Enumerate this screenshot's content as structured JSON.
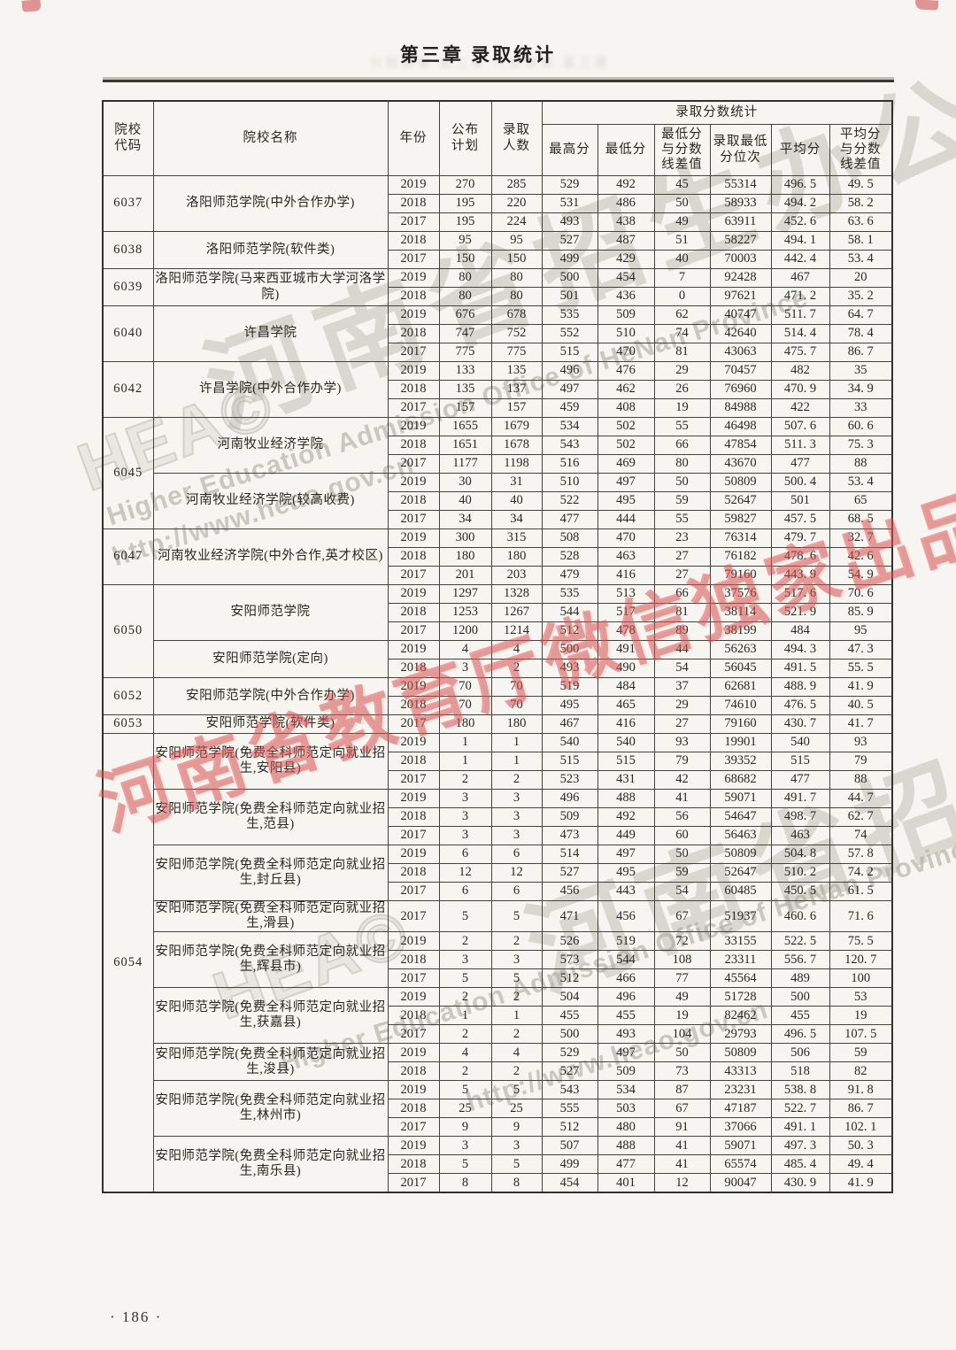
{
  "page": {
    "chapter_title": "第三章  录取统计",
    "ghost_text": "第三章 录取统计 第三章 录取统计",
    "page_number": "· 186 ·"
  },
  "colors": {
    "watermark_red": "#d55151",
    "watermark_gray": "#b0aba1",
    "paper": "#f6f5f1"
  },
  "watermarks": {
    "red_diagonal": "河南省教育厅微信独家出品",
    "gray_logo": "HEA©",
    "gray_cn": "河南省招生办公室",
    "gray_en": "Higher Education Admission Office of HeNan Province",
    "gray_url": "http://www.heao.gov.cn"
  },
  "table": {
    "headers": {
      "code": "院校\n代码",
      "name": "院校名称",
      "year": "年份",
      "plan": "公布\n计划",
      "admitted": "录取\n人数",
      "score_stats": "录取分数统计",
      "max": "最高分",
      "min": "最低分",
      "min_diff": "最低分\n与分数\n线差值",
      "rank": "录取最低\n分位次",
      "avg": "平均分",
      "avg_diff": "平均分\n与分数\n线差值"
    },
    "groups": [
      {
        "code": "6037",
        "blocks": [
          {
            "name": "洛阳师范学院(中外合作办学)",
            "rows": [
              [
                "2019",
                "270",
                "285",
                "529",
                "492",
                "45",
                "55314",
                "496. 5",
                "49. 5"
              ],
              [
                "2018",
                "195",
                "220",
                "531",
                "486",
                "50",
                "58933",
                "494. 2",
                "58. 2"
              ],
              [
                "2017",
                "195",
                "224",
                "493",
                "438",
                "49",
                "63911",
                "452. 6",
                "63. 6"
              ]
            ]
          }
        ]
      },
      {
        "code": "6038",
        "blocks": [
          {
            "name": "洛阳师范学院(软件类)",
            "rows": [
              [
                "2018",
                "95",
                "95",
                "527",
                "487",
                "51",
                "58227",
                "494. 1",
                "58. 1"
              ],
              [
                "2017",
                "150",
                "150",
                "499",
                "429",
                "40",
                "70003",
                "442. 4",
                "53. 4"
              ]
            ]
          }
        ]
      },
      {
        "code": "6039",
        "blocks": [
          {
            "name": "洛阳师范学院(马来西亚城市大学河洛学院)",
            "rows": [
              [
                "2019",
                "80",
                "80",
                "500",
                "454",
                "7",
                "92428",
                "467",
                "20"
              ],
              [
                "2018",
                "80",
                "80",
                "501",
                "436",
                "0",
                "97621",
                "471. 2",
                "35. 2"
              ]
            ]
          }
        ]
      },
      {
        "code": "6040",
        "blocks": [
          {
            "name": "许昌学院",
            "rows": [
              [
                "2019",
                "676",
                "678",
                "535",
                "509",
                "62",
                "40747",
                "511. 7",
                "64. 7"
              ],
              [
                "2018",
                "747",
                "752",
                "552",
                "510",
                "74",
                "42640",
                "514. 4",
                "78. 4"
              ],
              [
                "2017",
                "775",
                "775",
                "515",
                "470",
                "81",
                "43063",
                "475. 7",
                "86. 7"
              ]
            ]
          }
        ]
      },
      {
        "code": "6042",
        "blocks": [
          {
            "name": "许昌学院(中外合作办学)",
            "rows": [
              [
                "2019",
                "133",
                "135",
                "496",
                "476",
                "29",
                "70457",
                "482",
                "35"
              ],
              [
                "2018",
                "135",
                "137",
                "497",
                "462",
                "26",
                "76960",
                "470. 9",
                "34. 9"
              ],
              [
                "2017",
                "157",
                "157",
                "459",
                "408",
                "19",
                "84988",
                "422",
                "33"
              ]
            ]
          }
        ]
      },
      {
        "code": "6045",
        "blocks": [
          {
            "name": "河南牧业经济学院",
            "rows": [
              [
                "2019",
                "1655",
                "1679",
                "534",
                "502",
                "55",
                "46498",
                "507. 6",
                "60. 6"
              ],
              [
                "2018",
                "1651",
                "1678",
                "543",
                "502",
                "66",
                "47854",
                "511. 3",
                "75. 3"
              ],
              [
                "2017",
                "1177",
                "1198",
                "516",
                "469",
                "80",
                "43670",
                "477",
                "88"
              ]
            ]
          },
          {
            "name": "河南牧业经济学院(较高收费)",
            "rows": [
              [
                "2019",
                "30",
                "31",
                "510",
                "497",
                "50",
                "50809",
                "500. 4",
                "53. 4"
              ],
              [
                "2018",
                "40",
                "40",
                "522",
                "495",
                "59",
                "52647",
                "501",
                "65"
              ],
              [
                "2017",
                "34",
                "34",
                "477",
                "444",
                "55",
                "59827",
                "457. 5",
                "68. 5"
              ]
            ]
          }
        ]
      },
      {
        "code": "6047",
        "blocks": [
          {
            "name": "河南牧业经济学院(中外合作,英才校区)",
            "rows": [
              [
                "2019",
                "300",
                "315",
                "508",
                "470",
                "23",
                "76314",
                "479. 7",
                "32. 7"
              ],
              [
                "2018",
                "180",
                "180",
                "528",
                "463",
                "27",
                "76182",
                "478. 6",
                "42. 6"
              ],
              [
                "2017",
                "201",
                "203",
                "479",
                "416",
                "27",
                "79160",
                "443. 9",
                "54. 9"
              ]
            ]
          }
        ]
      },
      {
        "code": "6050",
        "blocks": [
          {
            "name": "安阳师范学院",
            "rows": [
              [
                "2019",
                "1297",
                "1328",
                "535",
                "513",
                "66",
                "37576",
                "517. 6",
                "70. 6"
              ],
              [
                "2018",
                "1253",
                "1267",
                "544",
                "517",
                "81",
                "38114",
                "521. 9",
                "85. 9"
              ],
              [
                "2017",
                "1200",
                "1214",
                "512",
                "478",
                "89",
                "38199",
                "484",
                "95"
              ]
            ]
          },
          {
            "name": "安阳师范学院(定向)",
            "rows": [
              [
                "2019",
                "4",
                "4",
                "500",
                "491",
                "44",
                "56263",
                "494. 3",
                "47. 3"
              ],
              [
                "2018",
                "3",
                "2",
                "493",
                "490",
                "54",
                "56045",
                "491. 5",
                "55. 5"
              ]
            ]
          }
        ]
      },
      {
        "code": "6052",
        "blocks": [
          {
            "name": "安阳师范学院(中外合作办学)",
            "rows": [
              [
                "2019",
                "70",
                "70",
                "519",
                "484",
                "37",
                "62681",
                "488. 9",
                "41. 9"
              ],
              [
                "2018",
                "70",
                "70",
                "495",
                "465",
                "29",
                "74610",
                "476. 5",
                "40. 5"
              ]
            ]
          }
        ]
      },
      {
        "code": "6053",
        "blocks": [
          {
            "name": "安阳师范学院(软件类)",
            "rows": [
              [
                "2017",
                "180",
                "180",
                "467",
                "416",
                "27",
                "79160",
                "430. 7",
                "41. 7"
              ]
            ]
          }
        ]
      },
      {
        "code": "6054",
        "blocks": [
          {
            "name": "安阳师范学院(免费全科师范定向就业招生,安阳县)",
            "rows": [
              [
                "2019",
                "1",
                "1",
                "540",
                "540",
                "93",
                "19901",
                "540",
                "93"
              ],
              [
                "2018",
                "1",
                "1",
                "515",
                "515",
                "79",
                "39352",
                "515",
                "79"
              ],
              [
                "2017",
                "2",
                "2",
                "523",
                "431",
                "42",
                "68682",
                "477",
                "88"
              ]
            ]
          },
          {
            "name": "安阳师范学院(免费全科师范定向就业招生,范县)",
            "rows": [
              [
                "2019",
                "3",
                "3",
                "496",
                "488",
                "41",
                "59071",
                "491. 7",
                "44. 7"
              ],
              [
                "2018",
                "3",
                "3",
                "509",
                "492",
                "56",
                "54647",
                "498. 7",
                "62. 7"
              ],
              [
                "2017",
                "3",
                "3",
                "473",
                "449",
                "60",
                "56463",
                "463",
                "74"
              ]
            ]
          },
          {
            "name": "安阳师范学院(免费全科师范定向就业招生,封丘县)",
            "rows": [
              [
                "2019",
                "6",
                "6",
                "514",
                "497",
                "50",
                "50809",
                "504. 8",
                "57. 8"
              ],
              [
                "2018",
                "12",
                "12",
                "527",
                "495",
                "59",
                "52647",
                "510. 2",
                "74. 2"
              ],
              [
                "2017",
                "6",
                "6",
                "456",
                "443",
                "54",
                "60485",
                "450. 5",
                "61. 5"
              ]
            ]
          },
          {
            "name": "安阳师范学院(免费全科师范定向就业招生,滑县)",
            "rows": [
              [
                "2017",
                "5",
                "5",
                "471",
                "456",
                "67",
                "51937",
                "460. 6",
                "71. 6"
              ]
            ]
          },
          {
            "name": "安阳师范学院(免费全科师范定向就业招生,辉县市)",
            "rows": [
              [
                "2019",
                "2",
                "2",
                "526",
                "519",
                "72",
                "33155",
                "522. 5",
                "75. 5"
              ],
              [
                "2018",
                "3",
                "3",
                "573",
                "544",
                "108",
                "23311",
                "556. 7",
                "120. 7"
              ],
              [
                "2017",
                "5",
                "5",
                "512",
                "466",
                "77",
                "45564",
                "489",
                "100"
              ]
            ]
          },
          {
            "name": "安阳师范学院(免费全科师范定向就业招生,获嘉县)",
            "rows": [
              [
                "2019",
                "2",
                "2",
                "504",
                "496",
                "49",
                "51728",
                "500",
                "53"
              ],
              [
                "2018",
                "1",
                "1",
                "455",
                "455",
                "19",
                "82462",
                "455",
                "19"
              ],
              [
                "2017",
                "2",
                "2",
                "500",
                "493",
                "104",
                "29793",
                "496. 5",
                "107. 5"
              ]
            ]
          },
          {
            "name": "安阳师范学院(免费全科师范定向就业招生,浚县)",
            "rows": [
              [
                "2019",
                "4",
                "4",
                "529",
                "497",
                "50",
                "50809",
                "506",
                "59"
              ],
              [
                "2018",
                "2",
                "2",
                "527",
                "509",
                "73",
                "43313",
                "518",
                "82"
              ]
            ]
          },
          {
            "name": "安阳师范学院(免费全科师范定向就业招生,林州市)",
            "rows": [
              [
                "2019",
                "5",
                "5",
                "543",
                "534",
                "87",
                "23231",
                "538. 8",
                "91. 8"
              ],
              [
                "2018",
                "25",
                "25",
                "555",
                "503",
                "67",
                "47187",
                "522. 7",
                "86. 7"
              ],
              [
                "2017",
                "9",
                "9",
                "512",
                "480",
                "91",
                "37066",
                "491. 1",
                "102. 1"
              ]
            ]
          },
          {
            "name": "安阳师范学院(免费全科师范定向就业招生,南乐县)",
            "rows": [
              [
                "2019",
                "3",
                "3",
                "507",
                "488",
                "41",
                "59071",
                "497. 3",
                "50. 3"
              ],
              [
                "2018",
                "5",
                "5",
                "499",
                "477",
                "41",
                "65574",
                "485. 4",
                "49. 4"
              ],
              [
                "2017",
                "8",
                "8",
                "454",
                "401",
                "12",
                "90047",
                "430. 9",
                "41. 9"
              ]
            ]
          }
        ]
      }
    ]
  }
}
